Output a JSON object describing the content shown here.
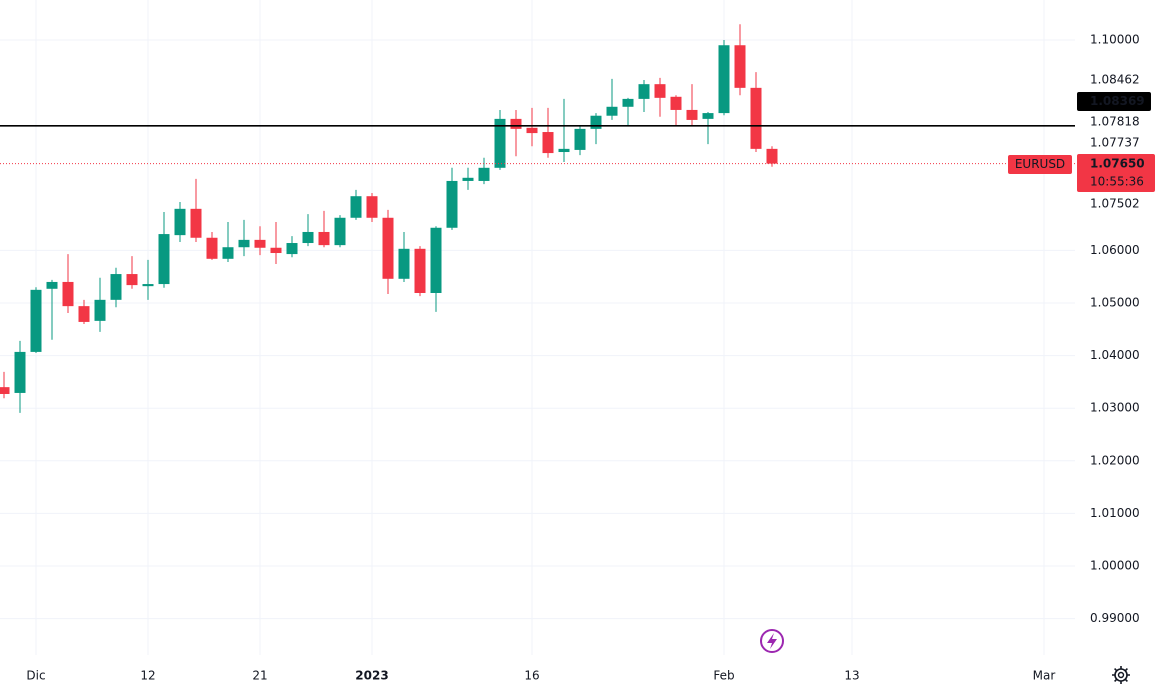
{
  "chart_data": {
    "type": "candlestick",
    "symbol": "EURUSD",
    "up_color": "#089981",
    "down_color": "#f23645",
    "categories": [
      null,
      null,
      "Dic",
      null,
      null,
      null,
      null,
      null,
      null,
      "12",
      null,
      null,
      null,
      null,
      null,
      null,
      "21",
      null,
      null,
      null,
      null,
      null,
      null,
      "2023",
      null,
      null,
      null,
      null,
      null,
      null,
      null,
      null,
      null,
      "16",
      null,
      null,
      null,
      null,
      null,
      null,
      null,
      null,
      null,
      null,
      null,
      "Feb",
      null,
      null,
      null,
      null,
      null,
      null,
      null,
      "13",
      null,
      null,
      null,
      null,
      null,
      null,
      null,
      null,
      null,
      null,
      null,
      "Mar"
    ],
    "open": [
      1.034,
      1.0329,
      1.0407,
      1.0527,
      1.054,
      1.0494,
      1.0466,
      1.0506,
      1.0555,
      1.0532,
      1.0536,
      1.0629,
      1.0679,
      1.0624,
      1.0584,
      1.0606,
      1.062,
      1.0605,
      1.0593,
      1.0614,
      1.0635,
      1.061,
      1.0662,
      1.0703,
      1.0662,
      1.0546,
      1.0603,
      1.0519,
      1.0643,
      1.0732,
      1.0732,
      1.0757,
      1.085,
      1.0833,
      1.0825,
      1.0787,
      1.0791,
      1.0831,
      1.0856,
      1.0873,
      1.0888,
      1.0916,
      1.0892,
      1.0867,
      1.085,
      1.0861,
      1.099,
      1.0909,
      1.0793,
      null,
      null,
      null,
      null,
      null,
      null,
      null,
      null,
      null,
      null,
      null,
      null,
      null,
      null,
      null,
      null,
      null
    ],
    "high": [
      1.0369,
      1.0428,
      1.053,
      1.0544,
      1.0593,
      1.0506,
      1.0548,
      1.0567,
      1.0589,
      1.0582,
      1.0673,
      1.0692,
      1.0736,
      1.0635,
      1.0654,
      1.0658,
      1.0646,
      1.0654,
      1.0627,
      1.0669,
      1.0675,
      1.0667,
      1.0715,
      1.0709,
      1.0677,
      1.0635,
      1.0608,
      1.0646,
      1.0757,
      1.0757,
      1.0776,
      1.0867,
      1.0867,
      1.0871,
      1.0871,
      1.0888,
      1.0837,
      1.0861,
      1.0926,
      1.089,
      1.0924,
      1.0928,
      1.0895,
      1.0916,
      1.0863,
      1.1,
      1.103,
      1.0939,
      1.0798,
      null,
      null,
      null,
      null,
      null,
      null,
      null,
      null,
      null,
      null,
      null,
      null,
      null,
      null,
      null,
      null,
      null
    ],
    "low": [
      1.0319,
      1.0291,
      1.0405,
      1.043,
      1.0481,
      1.046,
      1.0445,
      1.0492,
      1.0527,
      1.0506,
      1.0529,
      1.0616,
      1.0616,
      1.0582,
      1.0578,
      1.0589,
      1.0591,
      1.0574,
      1.0587,
      1.0608,
      1.0606,
      1.0606,
      1.0658,
      1.0654,
      1.0517,
      1.054,
      1.0513,
      1.0483,
      1.0639,
      1.0715,
      1.0726,
      1.0753,
      1.0779,
      1.0798,
      1.0776,
      1.0768,
      1.0781,
      1.0802,
      1.0848,
      1.0837,
      1.0863,
      1.0854,
      1.0838,
      1.0838,
      1.0802,
      1.0857,
      1.0895,
      1.0787,
      1.0759,
      null,
      null,
      null,
      null,
      null,
      null,
      null,
      null,
      null,
      null,
      null,
      null,
      null,
      null,
      null,
      null,
      null
    ],
    "close": [
      1.0327,
      1.0407,
      1.0525,
      1.054,
      1.0494,
      1.0464,
      1.0506,
      1.0555,
      1.0534,
      1.0536,
      1.0631,
      1.0679,
      1.0624,
      1.0584,
      1.0606,
      1.062,
      1.0605,
      1.0595,
      1.0614,
      1.0635,
      1.061,
      1.0662,
      1.0703,
      1.0662,
      1.0546,
      1.0603,
      1.0519,
      1.0643,
      1.0732,
      1.0738,
      1.0757,
      1.085,
      1.0831,
      1.0823,
      1.0785,
      1.0793,
      1.0831,
      1.0856,
      1.0873,
      1.0888,
      1.0916,
      1.089,
      1.0867,
      1.0848,
      1.0861,
      1.099,
      1.0909,
      1.0793,
      1.0765,
      null,
      null,
      null,
      null,
      null,
      null,
      null,
      null,
      null,
      null,
      null,
      null,
      null,
      null,
      null,
      null,
      null
    ],
    "ylim": [
      0.98308,
      1.1076
    ],
    "yticks": [
      {
        "value": 0.99,
        "label": "0.99000"
      },
      {
        "value": 1.0,
        "label": "1.00000"
      },
      {
        "value": 1.01,
        "label": "1.01000"
      },
      {
        "value": 1.02,
        "label": "1.02000"
      },
      {
        "value": 1.03,
        "label": "1.03000"
      },
      {
        "value": 1.04,
        "label": "1.04000"
      },
      {
        "value": 1.05,
        "label": "1.05000"
      },
      {
        "value": 1.06,
        "label": "1.06000"
      },
      {
        "value": 1.1,
        "label": "1.10000"
      }
    ],
    "grid": true,
    "price_levels": [
      1.08462,
      1.07818,
      1.07737,
      1.07502
    ],
    "hline": {
      "value": 1.08369,
      "label": "1.08369",
      "color": "#000000"
    },
    "last_price": {
      "value": 1.0765,
      "label": "1.07650",
      "countdown": "10:55:36",
      "color": "#f23645"
    }
  }
}
